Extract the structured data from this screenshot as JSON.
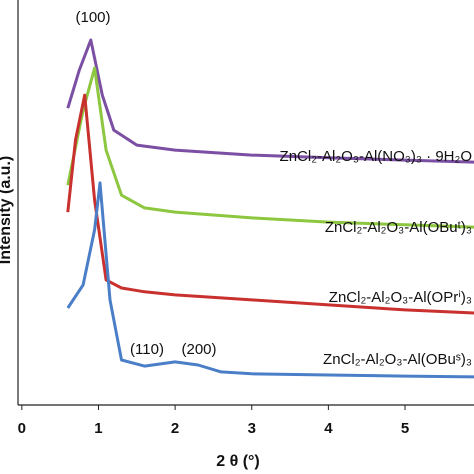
{
  "chart_data": {
    "type": "line",
    "x_label": "2 θ (°)",
    "y_label": "Intensity (a.u.)",
    "xlim": [
      -0.05,
      5.9
    ],
    "xticks": [
      0,
      1,
      2,
      3,
      4,
      5
    ],
    "ylim": [
      0,
      100
    ],
    "grid": false,
    "annotations": [
      "(100)",
      "(110)",
      "(200)"
    ],
    "series": [
      {
        "name": "ZnCl₂-Al₂O₃-Al(NO₃)₃ · 9H₂O",
        "color": "#7b4fa3",
        "x": [
          0.6,
          0.75,
          0.9,
          1.05,
          1.2,
          1.5,
          2,
          3,
          4,
          5,
          5.9
        ],
        "values": [
          77.1,
          87.0,
          94.8,
          80.5,
          71.4,
          67.5,
          66.2,
          64.9,
          64.2,
          63.6,
          63.1
        ]
      },
      {
        "name": "ZnCl₂-Al₂O₃-Al(OBuᵗ)₃",
        "color": "#8dc63f",
        "x": [
          0.6,
          0.8,
          0.95,
          1.1,
          1.3,
          1.6,
          2,
          3,
          4,
          5,
          5.9
        ],
        "values": [
          57.1,
          76.6,
          87.5,
          66.2,
          54.5,
          51.2,
          50.1,
          48.6,
          47.5,
          46.8,
          46.2
        ]
      },
      {
        "name": "ZnCl₂-Al₂O₃-Al(OPrⁱ)₃",
        "color": "#c8312e",
        "x": [
          0.6,
          0.7,
          0.82,
          0.95,
          1.1,
          1.3,
          1.6,
          2,
          3,
          4,
          5,
          5.9
        ],
        "values": [
          50.1,
          68.8,
          80.5,
          53.2,
          32.5,
          30.4,
          29.4,
          28.6,
          27.3,
          26.0,
          24.7,
          23.9
        ]
      },
      {
        "name": "ZnCl₂-Al₂O₃-Al(OBuˢ)₃",
        "color": "#4a7fc8",
        "x": [
          0.6,
          0.8,
          0.95,
          1.02,
          1.15,
          1.3,
          1.6,
          2,
          2.3,
          2.6,
          3,
          4,
          5,
          5.9
        ],
        "values": [
          25.2,
          31.2,
          45.5,
          57.7,
          27.3,
          11.7,
          10.1,
          11.2,
          10.4,
          8.6,
          8.1,
          7.8,
          7.5,
          7.3
        ]
      }
    ]
  }
}
